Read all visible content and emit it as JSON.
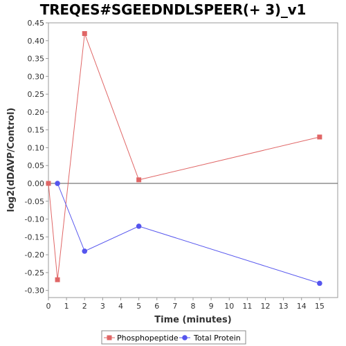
{
  "chart_data": {
    "type": "line",
    "title": "TREQES#SGEEDNDLSPEER(+ 3)_v1",
    "xlabel": "Time (minutes)",
    "ylabel": "log2(dDAVP/Control)",
    "xlim": [
      0,
      16
    ],
    "ylim": [
      -0.32,
      0.45
    ],
    "xticks": [
      0,
      1,
      2,
      3,
      4,
      5,
      6,
      7,
      8,
      9,
      10,
      11,
      12,
      13,
      14,
      15
    ],
    "yticks": [
      -0.3,
      -0.25,
      -0.2,
      -0.15,
      -0.1,
      -0.05,
      0.0,
      0.05,
      0.1,
      0.15,
      0.2,
      0.25,
      0.3,
      0.35,
      0.4,
      0.45
    ],
    "legend_position": "bottom",
    "grid": false,
    "series": [
      {
        "name": "Phosphopeptide",
        "color": "#e06666",
        "marker": "square",
        "x": [
          0,
          0.5,
          2,
          5,
          15
        ],
        "y": [
          0.0,
          -0.27,
          0.42,
          0.01,
          0.13
        ]
      },
      {
        "name": "Total Protein",
        "color": "#5555ee",
        "marker": "circle",
        "x": [
          0.5,
          2,
          5,
          15
        ],
        "y": [
          0.0,
          -0.19,
          -0.12,
          -0.28
        ]
      }
    ]
  }
}
